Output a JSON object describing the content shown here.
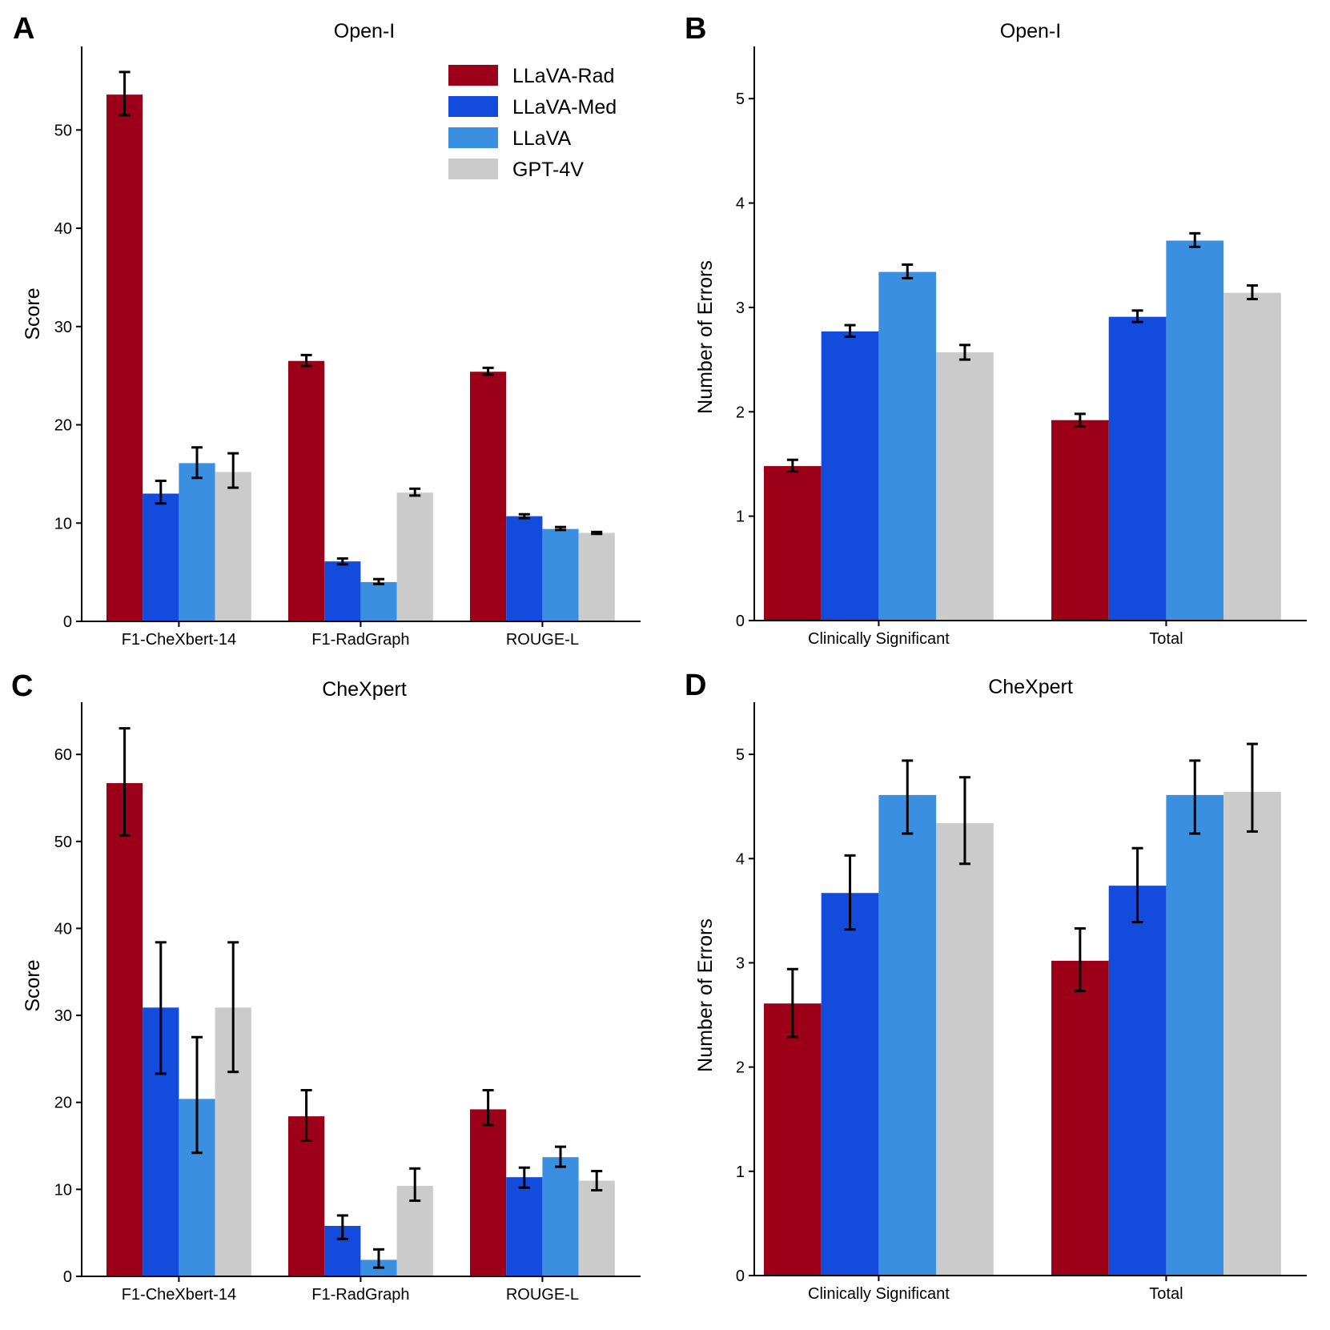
{
  "legend": [
    {
      "label": "LLaVA-Rad",
      "color": "#9b0018"
    },
    {
      "label": "LLaVA-Med",
      "color": "#134bdc"
    },
    {
      "label": "LLaVA",
      "color": "#3b8fe0"
    },
    {
      "label": "GPT-4V",
      "color": "#cbcbcb"
    }
  ],
  "chart_data": [
    {
      "panel": "A",
      "type": "bar",
      "title": "Open-I",
      "xlabel": "",
      "ylabel": "Score",
      "ylim": [
        0,
        58.5
      ],
      "yticks": [
        0,
        10,
        20,
        30,
        40,
        50
      ],
      "categories": [
        "F1-CheXbert-14",
        "F1-RadGraph",
        "ROUGE-L"
      ],
      "series": [
        {
          "name": "LLaVA-Rad",
          "values": [
            53.6,
            26.5,
            25.4
          ],
          "errors": [
            [
              51.5,
              55.9
            ],
            [
              26.0,
              27.1
            ],
            [
              25.1,
              25.8
            ]
          ]
        },
        {
          "name": "LLaVA-Med",
          "values": [
            13.0,
            6.1,
            10.7
          ],
          "errors": [
            [
              12.0,
              14.3
            ],
            [
              5.8,
              6.4
            ],
            [
              10.5,
              10.9
            ]
          ]
        },
        {
          "name": "LLaVA",
          "values": [
            16.1,
            4.0,
            9.4
          ],
          "errors": [
            [
              14.6,
              17.7
            ],
            [
              3.8,
              4.3
            ],
            [
              9.3,
              9.6
            ]
          ]
        },
        {
          "name": "GPT-4V",
          "values": [
            15.2,
            13.1,
            9.0
          ],
          "errors": [
            [
              13.6,
              17.1
            ],
            [
              12.8,
              13.5
            ],
            [
              8.9,
              9.1
            ]
          ]
        }
      ],
      "legend_position": "top-right"
    },
    {
      "panel": "B",
      "type": "bar",
      "title": "Open-I",
      "xlabel": "",
      "ylabel": "Number of Errors",
      "ylim": [
        0,
        5.5
      ],
      "yticks": [
        0,
        1,
        2,
        3,
        4,
        5
      ],
      "categories": [
        "Clinically Significant",
        "Total"
      ],
      "series": [
        {
          "name": "LLaVA-Rad",
          "values": [
            1.48,
            1.92
          ],
          "errors": [
            [
              1.43,
              1.54
            ],
            [
              1.86,
              1.98
            ]
          ]
        },
        {
          "name": "LLaVA-Med",
          "values": [
            2.77,
            2.91
          ],
          "errors": [
            [
              2.72,
              2.83
            ],
            [
              2.86,
              2.97
            ]
          ]
        },
        {
          "name": "LLaVA",
          "values": [
            3.34,
            3.64
          ],
          "errors": [
            [
              3.28,
              3.41
            ],
            [
              3.58,
              3.71
            ]
          ]
        },
        {
          "name": "GPT-4V",
          "values": [
            2.57,
            3.14
          ],
          "errors": [
            [
              2.5,
              2.64
            ],
            [
              3.08,
              3.21
            ]
          ]
        }
      ]
    },
    {
      "panel": "C",
      "type": "bar",
      "title": "CheXpert",
      "xlabel": "",
      "ylabel": "Score",
      "ylim": [
        0,
        66
      ],
      "yticks": [
        0,
        10,
        20,
        30,
        40,
        50,
        60
      ],
      "categories": [
        "F1-CheXbert-14",
        "F1-RadGraph",
        "ROUGE-L"
      ],
      "series": [
        {
          "name": "LLaVA-Rad",
          "values": [
            56.7,
            18.4,
            19.2
          ],
          "errors": [
            [
              50.7,
              63.0
            ],
            [
              15.6,
              21.4
            ],
            [
              17.4,
              21.4
            ]
          ]
        },
        {
          "name": "LLaVA-Med",
          "values": [
            30.9,
            5.8,
            11.4
          ],
          "errors": [
            [
              23.3,
              38.4
            ],
            [
              4.3,
              7.0
            ],
            [
              10.2,
              12.5
            ]
          ]
        },
        {
          "name": "LLaVA",
          "values": [
            20.4,
            1.9,
            13.7
          ],
          "errors": [
            [
              14.2,
              27.5
            ],
            [
              1.0,
              3.1
            ],
            [
              12.6,
              14.9
            ]
          ]
        },
        {
          "name": "GPT-4V",
          "values": [
            30.9,
            10.4,
            11.0
          ],
          "errors": [
            [
              23.5,
              38.4
            ],
            [
              8.7,
              12.4
            ],
            [
              9.9,
              12.1
            ]
          ]
        }
      ]
    },
    {
      "panel": "D",
      "type": "bar",
      "title": "CheXpert",
      "xlabel": "",
      "ylabel": "Number of Errors",
      "ylim": [
        0,
        5.5
      ],
      "yticks": [
        0,
        1,
        2,
        3,
        4,
        5
      ],
      "categories": [
        "Clinically Significant",
        "Total"
      ],
      "series": [
        {
          "name": "LLaVA-Rad",
          "values": [
            2.61,
            3.02
          ],
          "errors": [
            [
              2.29,
              2.94
            ],
            [
              2.73,
              3.33
            ]
          ]
        },
        {
          "name": "LLaVA-Med",
          "values": [
            3.67,
            3.74
          ],
          "errors": [
            [
              3.32,
              4.03
            ],
            [
              3.39,
              4.1
            ]
          ]
        },
        {
          "name": "LLaVA",
          "values": [
            4.61,
            4.61
          ],
          "errors": [
            [
              4.24,
              4.94
            ],
            [
              4.24,
              4.94
            ]
          ]
        },
        {
          "name": "GPT-4V",
          "values": [
            4.34,
            4.64
          ],
          "errors": [
            [
              3.95,
              4.78
            ],
            [
              4.26,
              5.1
            ]
          ]
        }
      ]
    }
  ]
}
